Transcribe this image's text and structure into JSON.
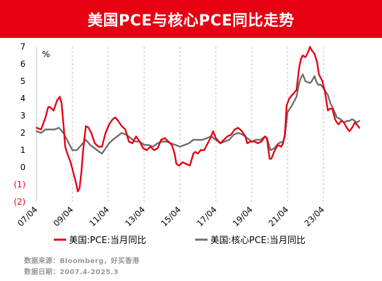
{
  "title": "美国PCE与核心PCE同比走势",
  "source_line": "数据来源：Bloomberg，好买香港",
  "date_line": "数据日期：2007.4-2025.3",
  "colors": {
    "title_bg": "#e60012",
    "series1": "#e60012",
    "series2": "#6d6d6d",
    "negative_labels": "#e60012"
  },
  "chart_data": {
    "type": "line",
    "unit": "%",
    "ylim": [
      -2,
      7
    ],
    "yticks": [
      7,
      6,
      5,
      4,
      3,
      2,
      1,
      0,
      -1,
      -2
    ],
    "ytick_labels": [
      "7",
      "6",
      "5",
      "4",
      "3",
      "2",
      "1",
      "0",
      "(1)",
      "(2)"
    ],
    "xlim": [
      2007.25,
      2025.25
    ],
    "xtick_labels": [
      "07/04",
      "09/04",
      "11/04",
      "13/04",
      "15/04",
      "17/04",
      "19/04",
      "21/04",
      "23/04"
    ],
    "xtick_positions": [
      2007.25,
      2009.25,
      2011.25,
      2013.25,
      2015.25,
      2017.25,
      2019.25,
      2021.25,
      2023.25
    ],
    "grid": "vertical-dashed",
    "legend_position": "bottom",
    "series": [
      {
        "name": "美国:PCE:当月同比",
        "color": "#e60012",
        "points": [
          [
            2007.25,
            2.3
          ],
          [
            2007.5,
            2.2
          ],
          [
            2007.75,
            2.9
          ],
          [
            2007.9,
            3.5
          ],
          [
            2008.0,
            3.5
          ],
          [
            2008.2,
            3.3
          ],
          [
            2008.4,
            3.9
          ],
          [
            2008.55,
            4.1
          ],
          [
            2008.65,
            3.7
          ],
          [
            2008.75,
            2.5
          ],
          [
            2008.85,
            1.2
          ],
          [
            2009.0,
            0.7
          ],
          [
            2009.15,
            0.3
          ],
          [
            2009.3,
            -0.3
          ],
          [
            2009.45,
            -0.9
          ],
          [
            2009.55,
            -1.4
          ],
          [
            2009.65,
            -1.2
          ],
          [
            2009.75,
            -0.3
          ],
          [
            2009.85,
            1.0
          ],
          [
            2010.0,
            2.4
          ],
          [
            2010.15,
            2.3
          ],
          [
            2010.3,
            2.0
          ],
          [
            2010.5,
            1.4
          ],
          [
            2010.7,
            1.2
          ],
          [
            2010.9,
            1.2
          ],
          [
            2011.1,
            2.0
          ],
          [
            2011.3,
            2.5
          ],
          [
            2011.5,
            2.8
          ],
          [
            2011.65,
            2.9
          ],
          [
            2011.8,
            2.7
          ],
          [
            2012.0,
            2.4
          ],
          [
            2012.2,
            2.2
          ],
          [
            2012.4,
            1.5
          ],
          [
            2012.6,
            1.4
          ],
          [
            2012.8,
            1.8
          ],
          [
            2013.0,
            1.5
          ],
          [
            2013.2,
            1.1
          ],
          [
            2013.4,
            1.0
          ],
          [
            2013.6,
            1.2
          ],
          [
            2013.8,
            1.0
          ],
          [
            2014.0,
            1.1
          ],
          [
            2014.2,
            1.6
          ],
          [
            2014.4,
            1.7
          ],
          [
            2014.6,
            1.5
          ],
          [
            2014.8,
            1.3
          ],
          [
            2014.95,
            0.8
          ],
          [
            2015.05,
            0.2
          ],
          [
            2015.2,
            0.1
          ],
          [
            2015.4,
            0.3
          ],
          [
            2015.6,
            0.2
          ],
          [
            2015.8,
            0.1
          ],
          [
            2016.0,
            0.8
          ],
          [
            2016.1,
            0.9
          ],
          [
            2016.25,
            0.8
          ],
          [
            2016.4,
            1.0
          ],
          [
            2016.6,
            1.0
          ],
          [
            2016.8,
            1.4
          ],
          [
            2016.95,
            1.7
          ],
          [
            2017.1,
            2.1
          ],
          [
            2017.25,
            1.7
          ],
          [
            2017.5,
            1.4
          ],
          [
            2017.7,
            1.6
          ],
          [
            2017.9,
            1.8
          ],
          [
            2018.1,
            1.9
          ],
          [
            2018.3,
            2.2
          ],
          [
            2018.5,
            2.3
          ],
          [
            2018.7,
            2.1
          ],
          [
            2018.9,
            1.8
          ],
          [
            2019.0,
            1.4
          ],
          [
            2019.2,
            1.5
          ],
          [
            2019.4,
            1.5
          ],
          [
            2019.6,
            1.4
          ],
          [
            2019.8,
            1.5
          ],
          [
            2020.0,
            1.8
          ],
          [
            2020.1,
            1.7
          ],
          [
            2020.25,
            0.5
          ],
          [
            2020.35,
            0.5
          ],
          [
            2020.5,
            0.9
          ],
          [
            2020.7,
            1.3
          ],
          [
            2020.9,
            1.2
          ],
          [
            2021.0,
            1.4
          ],
          [
            2021.1,
            1.9
          ],
          [
            2021.2,
            3.6
          ],
          [
            2021.35,
            4.0
          ],
          [
            2021.5,
            4.2
          ],
          [
            2021.6,
            4.3
          ],
          [
            2021.75,
            4.5
          ],
          [
            2021.9,
            5.8
          ],
          [
            2022.0,
            6.3
          ],
          [
            2022.1,
            6.5
          ],
          [
            2022.25,
            6.4
          ],
          [
            2022.4,
            6.7
          ],
          [
            2022.5,
            7.0
          ],
          [
            2022.6,
            6.8
          ],
          [
            2022.75,
            6.6
          ],
          [
            2022.9,
            6.1
          ],
          [
            2023.0,
            5.4
          ],
          [
            2023.2,
            5.0
          ],
          [
            2023.35,
            4.3
          ],
          [
            2023.5,
            3.3
          ],
          [
            2023.6,
            3.4
          ],
          [
            2023.75,
            3.4
          ],
          [
            2023.9,
            2.8
          ],
          [
            2024.0,
            2.6
          ],
          [
            2024.1,
            2.5
          ],
          [
            2024.25,
            2.7
          ],
          [
            2024.4,
            2.6
          ],
          [
            2024.55,
            2.3
          ],
          [
            2024.7,
            2.1
          ],
          [
            2024.85,
            2.3
          ],
          [
            2025.0,
            2.6
          ],
          [
            2025.1,
            2.5
          ],
          [
            2025.25,
            2.3
          ]
        ]
      },
      {
        "name": "美国:核心PCE:当月同比",
        "color": "#6d6d6d",
        "points": [
          [
            2007.25,
            2.1
          ],
          [
            2007.5,
            2.0
          ],
          [
            2007.75,
            2.2
          ],
          [
            2008.0,
            2.2
          ],
          [
            2008.25,
            2.2
          ],
          [
            2008.5,
            2.3
          ],
          [
            2008.75,
            2.0
          ],
          [
            2009.0,
            1.5
          ],
          [
            2009.25,
            1.0
          ],
          [
            2009.5,
            1.0
          ],
          [
            2009.75,
            1.3
          ],
          [
            2010.0,
            1.6
          ],
          [
            2010.25,
            1.3
          ],
          [
            2010.5,
            1.1
          ],
          [
            2010.75,
            0.9
          ],
          [
            2010.9,
            0.8
          ],
          [
            2011.1,
            1.1
          ],
          [
            2011.3,
            1.4
          ],
          [
            2011.5,
            1.6
          ],
          [
            2011.75,
            1.8
          ],
          [
            2012.0,
            2.0
          ],
          [
            2012.25,
            1.9
          ],
          [
            2012.5,
            1.7
          ],
          [
            2012.75,
            1.5
          ],
          [
            2013.0,
            1.5
          ],
          [
            2013.25,
            1.3
          ],
          [
            2013.5,
            1.3
          ],
          [
            2013.75,
            1.2
          ],
          [
            2014.0,
            1.4
          ],
          [
            2014.25,
            1.5
          ],
          [
            2014.5,
            1.5
          ],
          [
            2014.75,
            1.4
          ],
          [
            2015.0,
            1.3
          ],
          [
            2015.25,
            1.2
          ],
          [
            2015.5,
            1.3
          ],
          [
            2015.75,
            1.4
          ],
          [
            2016.0,
            1.6
          ],
          [
            2016.25,
            1.6
          ],
          [
            2016.5,
            1.6
          ],
          [
            2016.75,
            1.7
          ],
          [
            2017.0,
            1.8
          ],
          [
            2017.25,
            1.6
          ],
          [
            2017.5,
            1.4
          ],
          [
            2017.75,
            1.5
          ],
          [
            2018.0,
            1.6
          ],
          [
            2018.25,
            1.9
          ],
          [
            2018.5,
            2.0
          ],
          [
            2018.75,
            1.9
          ],
          [
            2019.0,
            1.7
          ],
          [
            2019.25,
            1.5
          ],
          [
            2019.5,
            1.6
          ],
          [
            2019.75,
            1.6
          ],
          [
            2020.0,
            1.8
          ],
          [
            2020.1,
            1.7
          ],
          [
            2020.3,
            1.0
          ],
          [
            2020.5,
            1.1
          ],
          [
            2020.75,
            1.4
          ],
          [
            2021.0,
            1.5
          ],
          [
            2021.1,
            1.8
          ],
          [
            2021.25,
            3.2
          ],
          [
            2021.5,
            3.6
          ],
          [
            2021.75,
            4.1
          ],
          [
            2021.9,
            4.9
          ],
          [
            2022.0,
            5.2
          ],
          [
            2022.1,
            5.4
          ],
          [
            2022.25,
            5.0
          ],
          [
            2022.5,
            4.9
          ],
          [
            2022.6,
            5.0
          ],
          [
            2022.75,
            5.3
          ],
          [
            2022.85,
            5.0
          ],
          [
            2022.95,
            4.8
          ],
          [
            2023.0,
            4.8
          ],
          [
            2023.1,
            4.8
          ],
          [
            2023.25,
            4.6
          ],
          [
            2023.5,
            4.2
          ],
          [
            2023.65,
            3.7
          ],
          [
            2023.8,
            3.4
          ],
          [
            2024.0,
            2.9
          ],
          [
            2024.2,
            2.8
          ],
          [
            2024.4,
            2.6
          ],
          [
            2024.55,
            2.7
          ],
          [
            2024.7,
            2.7
          ],
          [
            2024.85,
            2.8
          ],
          [
            2025.0,
            2.7
          ],
          [
            2025.1,
            2.6
          ],
          [
            2025.25,
            2.7
          ]
        ]
      }
    ]
  }
}
